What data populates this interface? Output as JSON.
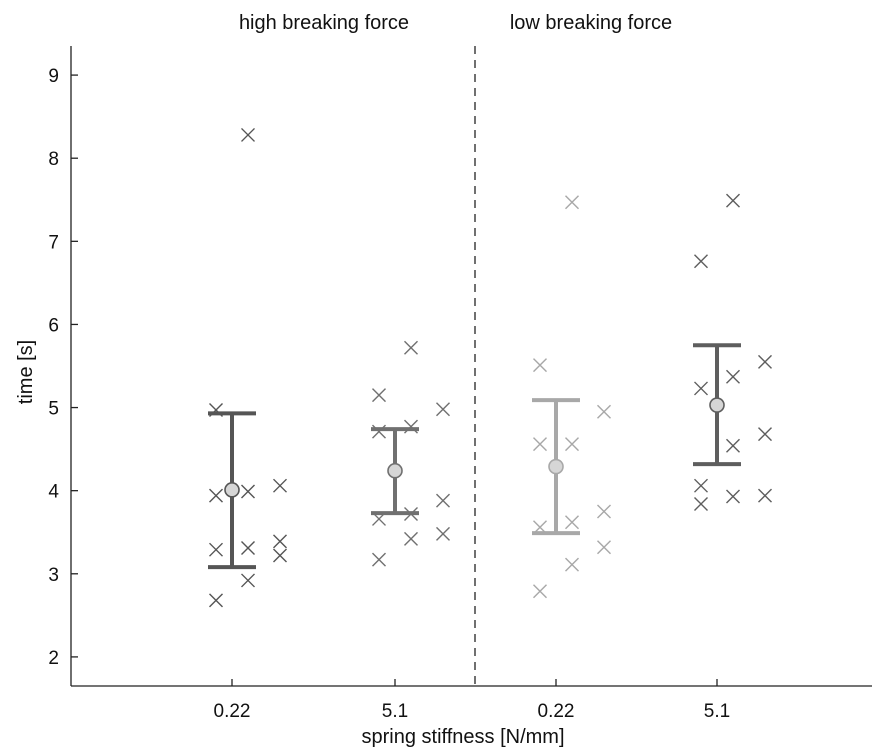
{
  "chart_data": {
    "type": "scatter",
    "xlabel": "spring stiffness [N/mm]",
    "ylabel": "time [s]",
    "ylim": [
      1.65,
      9.35
    ],
    "yticks": [
      2,
      3,
      4,
      5,
      6,
      7,
      8,
      9
    ],
    "grid": false,
    "legend": "none",
    "group_titles": [
      "high breaking force",
      "low breaking force"
    ],
    "categories": [
      "0.22",
      "5.1",
      "0.22",
      "5.1"
    ],
    "groups": [
      {
        "group": "high breaking force",
        "category": "0.22",
        "color": "#555555",
        "mean": 4.01,
        "err_low": 3.08,
        "err_high": 4.93,
        "points": [
          {
            "x": -0.2,
            "y": 4.97
          },
          {
            "x": -0.2,
            "y": 3.94
          },
          {
            "x": -0.2,
            "y": 3.29
          },
          {
            "x": -0.2,
            "y": 2.68
          },
          {
            "x": 0.2,
            "y": 8.28
          },
          {
            "x": 0.2,
            "y": 3.99
          },
          {
            "x": 0.2,
            "y": 3.31
          },
          {
            "x": 0.2,
            "y": 2.92
          },
          {
            "x": 0.6,
            "y": 4.06
          },
          {
            "x": 0.6,
            "y": 3.39
          },
          {
            "x": 0.6,
            "y": 3.22
          }
        ]
      },
      {
        "group": "high breaking force",
        "category": "5.1",
        "color": "#707070",
        "mean": 4.24,
        "err_low": 3.73,
        "err_high": 4.74,
        "points": [
          {
            "x": -0.2,
            "y": 5.15
          },
          {
            "x": -0.2,
            "y": 4.71
          },
          {
            "x": -0.2,
            "y": 3.66
          },
          {
            "x": -0.2,
            "y": 3.17
          },
          {
            "x": 0.2,
            "y": 5.72
          },
          {
            "x": 0.2,
            "y": 4.77
          },
          {
            "x": 0.2,
            "y": 3.72
          },
          {
            "x": 0.2,
            "y": 3.42
          },
          {
            "x": 0.6,
            "y": 4.98
          },
          {
            "x": 0.6,
            "y": 3.88
          },
          {
            "x": 0.6,
            "y": 3.48
          }
        ]
      },
      {
        "group": "low breaking force",
        "category": "0.22",
        "color": "#a8a8a8",
        "mean": 4.29,
        "err_low": 3.49,
        "err_high": 5.09,
        "points": [
          {
            "x": -0.2,
            "y": 5.51
          },
          {
            "x": -0.2,
            "y": 4.56
          },
          {
            "x": -0.2,
            "y": 3.56
          },
          {
            "x": -0.2,
            "y": 2.79
          },
          {
            "x": 0.2,
            "y": 7.47
          },
          {
            "x": 0.2,
            "y": 4.56
          },
          {
            "x": 0.2,
            "y": 3.62
          },
          {
            "x": 0.2,
            "y": 3.11
          },
          {
            "x": 0.6,
            "y": 4.95
          },
          {
            "x": 0.6,
            "y": 3.75
          },
          {
            "x": 0.6,
            "y": 3.32
          }
        ]
      },
      {
        "group": "low breaking force",
        "category": "5.1",
        "color": "#5e5e5e",
        "mean": 5.03,
        "err_low": 4.32,
        "err_high": 5.75,
        "points": [
          {
            "x": -0.2,
            "y": 6.76
          },
          {
            "x": -0.2,
            "y": 5.23
          },
          {
            "x": -0.2,
            "y": 4.06
          },
          {
            "x": -0.2,
            "y": 3.84
          },
          {
            "x": 0.2,
            "y": 7.49
          },
          {
            "x": 0.2,
            "y": 5.37
          },
          {
            "x": 0.2,
            "y": 4.54
          },
          {
            "x": 0.2,
            "y": 3.93
          },
          {
            "x": 0.6,
            "y": 5.55
          },
          {
            "x": 0.6,
            "y": 4.68
          },
          {
            "x": 0.6,
            "y": 3.94
          }
        ]
      }
    ]
  }
}
